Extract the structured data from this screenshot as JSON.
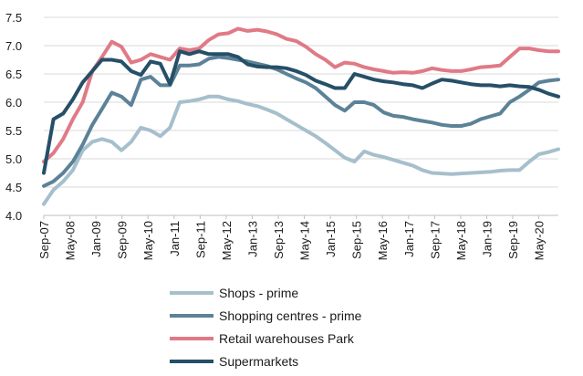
{
  "chart_data": {
    "type": "line",
    "title": "",
    "xlabel": "",
    "ylabel": "",
    "ylim": [
      4.0,
      7.5
    ],
    "yticks": [
      "4.0",
      "4.5",
      "5.0",
      "5.5",
      "6.0",
      "6.5",
      "7.0",
      "7.5"
    ],
    "xticks": [
      "Sep-07",
      "May-08",
      "Jan-09",
      "Sep-09",
      "May-10",
      "Jan-11",
      "Sep-11",
      "May-12",
      "Jan-13",
      "Sep-13",
      "May-14",
      "Jan-15",
      "Sep-15",
      "May-16",
      "Jan-17",
      "Sep-17",
      "May-18",
      "Jan-19",
      "Sep-19",
      "May-20"
    ],
    "grid": "horizontal",
    "legend_position": "bottom",
    "x_start": "Sep-07",
    "x_step_months": 4,
    "series": [
      {
        "name": "Shops - prime",
        "color": "#a6bfcc",
        "values": [
          4.2,
          4.45,
          4.6,
          4.8,
          5.15,
          5.3,
          5.35,
          5.3,
          5.15,
          5.3,
          5.55,
          5.5,
          5.4,
          5.55,
          6.0,
          6.02,
          6.05,
          6.1,
          6.1,
          6.05,
          6.02,
          5.97,
          5.93,
          5.87,
          5.8,
          5.7,
          5.6,
          5.5,
          5.4,
          5.28,
          5.15,
          5.02,
          4.95,
          5.13,
          5.07,
          5.03,
          4.98,
          4.93,
          4.88,
          4.8,
          4.75,
          4.74,
          4.73,
          4.74,
          4.75,
          4.76,
          4.77,
          4.79,
          4.8,
          4.8,
          4.95,
          5.08,
          5.12,
          5.17
        ]
      },
      {
        "name": "Shopping centres - prime",
        "color": "#5c8298",
        "values": [
          4.52,
          4.6,
          4.75,
          4.95,
          5.25,
          5.6,
          5.88,
          6.17,
          6.1,
          5.95,
          6.4,
          6.45,
          6.3,
          6.3,
          6.65,
          6.65,
          6.67,
          6.77,
          6.8,
          6.78,
          6.75,
          6.72,
          6.68,
          6.64,
          6.58,
          6.5,
          6.42,
          6.35,
          6.25,
          6.1,
          5.95,
          5.85,
          6.0,
          6.0,
          5.95,
          5.82,
          5.76,
          5.74,
          5.7,
          5.67,
          5.64,
          5.6,
          5.58,
          5.58,
          5.62,
          5.7,
          5.75,
          5.8,
          6.0,
          6.1,
          6.22,
          6.35,
          6.38,
          6.4
        ]
      },
      {
        "name": "Retail warehouses Park",
        "color": "#e07a86",
        "values": [
          4.95,
          5.1,
          5.35,
          5.7,
          6.0,
          6.55,
          6.8,
          7.07,
          6.98,
          6.7,
          6.75,
          6.85,
          6.8,
          6.75,
          6.95,
          6.92,
          6.95,
          7.1,
          7.2,
          7.22,
          7.3,
          7.26,
          7.28,
          7.25,
          7.2,
          7.12,
          7.08,
          6.98,
          6.85,
          6.75,
          6.62,
          6.7,
          6.68,
          6.62,
          6.58,
          6.55,
          6.52,
          6.53,
          6.52,
          6.55,
          6.6,
          6.57,
          6.55,
          6.55,
          6.58,
          6.62,
          6.63,
          6.65,
          6.8,
          6.95,
          6.95,
          6.92,
          6.9,
          6.9
        ]
      },
      {
        "name": "Supermarkets",
        "color": "#264f68",
        "values": [
          4.75,
          5.7,
          5.8,
          6.05,
          6.35,
          6.55,
          6.75,
          6.75,
          6.72,
          6.55,
          6.48,
          6.72,
          6.68,
          6.32,
          6.9,
          6.85,
          6.9,
          6.85,
          6.85,
          6.85,
          6.8,
          6.67,
          6.63,
          6.62,
          6.62,
          6.6,
          6.55,
          6.48,
          6.38,
          6.32,
          6.25,
          6.25,
          6.5,
          6.45,
          6.4,
          6.37,
          6.35,
          6.32,
          6.3,
          6.25,
          6.33,
          6.4,
          6.38,
          6.35,
          6.32,
          6.3,
          6.3,
          6.28,
          6.3,
          6.28,
          6.27,
          6.22,
          6.15,
          6.1
        ]
      }
    ]
  }
}
